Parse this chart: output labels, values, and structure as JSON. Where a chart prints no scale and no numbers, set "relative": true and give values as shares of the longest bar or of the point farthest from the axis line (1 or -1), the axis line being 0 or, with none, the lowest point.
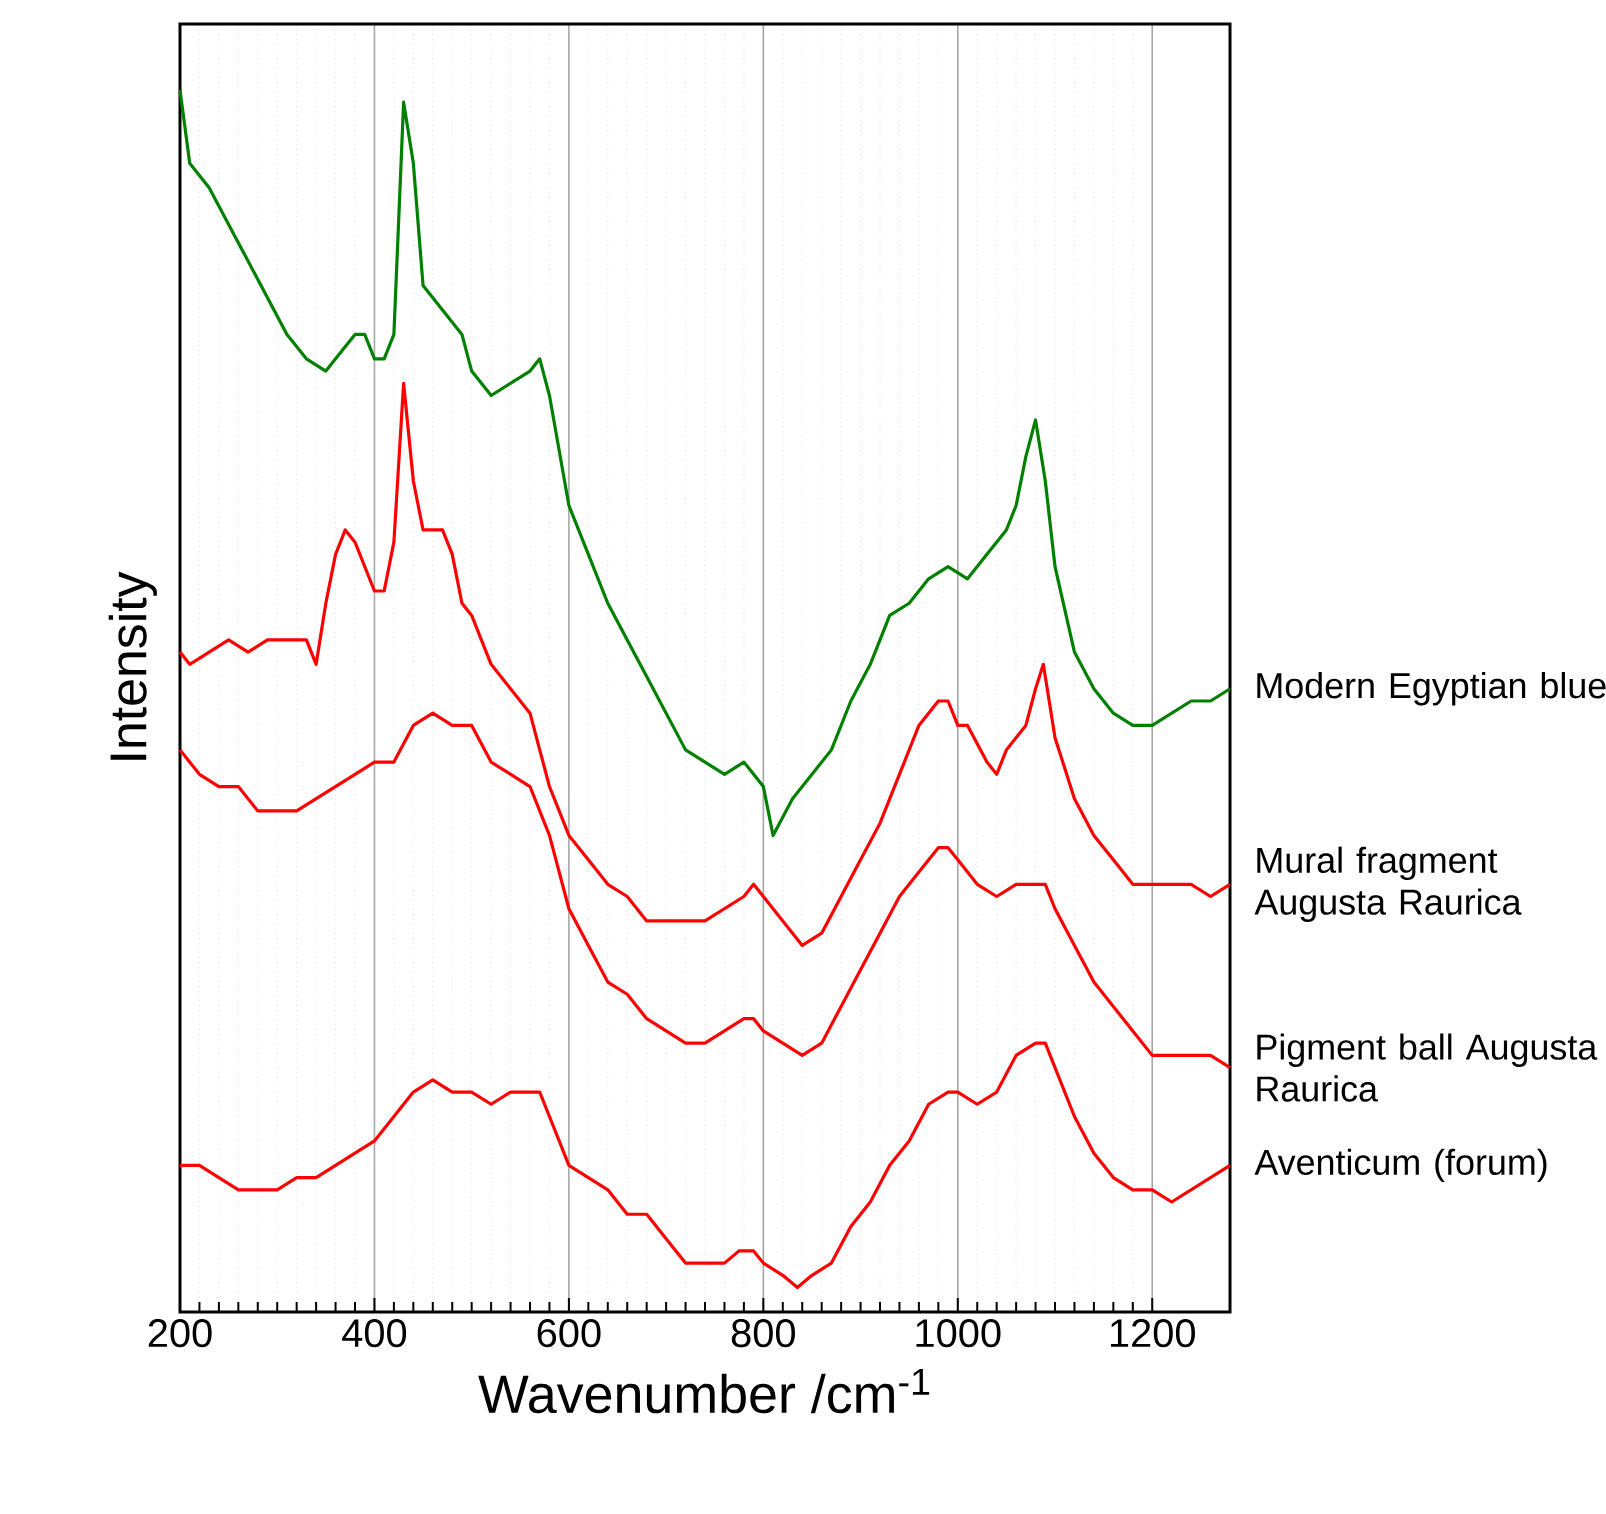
{
  "chart_data": {
    "type": "line",
    "relative": true,
    "xlabel": "Wavenumber /cm$^{-1}$",
    "ylabel": "Intensity",
    "xlim": [
      200,
      1280
    ],
    "xticks": [
      200,
      400,
      600,
      800,
      1000,
      1200
    ],
    "grid": "x",
    "legend": false,
    "marker": "none",
    "line_style": "solid",
    "series": [
      {
        "name": "Modern Egyptian blue",
        "color": "#008000",
        "x": [
          200,
          210,
          230,
          250,
          270,
          290,
          310,
          330,
          350,
          360,
          380,
          390,
          400,
          410,
          420,
          430,
          440,
          450,
          460,
          470,
          490,
          500,
          520,
          540,
          560,
          570,
          580,
          600,
          620,
          640,
          660,
          680,
          700,
          720,
          740,
          760,
          780,
          790,
          800,
          810,
          830,
          850,
          870,
          890,
          910,
          930,
          950,
          970,
          990,
          1010,
          1030,
          1050,
          1060,
          1070,
          1080,
          1090,
          1100,
          1120,
          1140,
          1160,
          1180,
          1200,
          1220,
          1240,
          1260,
          1280
        ],
        "values": [
          1.0,
          0.94,
          0.92,
          0.89,
          0.86,
          0.83,
          0.8,
          0.78,
          0.77,
          0.78,
          0.8,
          0.8,
          0.78,
          0.78,
          0.8,
          0.99,
          0.94,
          0.84,
          0.83,
          0.82,
          0.8,
          0.77,
          0.75,
          0.76,
          0.77,
          0.78,
          0.75,
          0.66,
          0.62,
          0.58,
          0.55,
          0.52,
          0.49,
          0.46,
          0.45,
          0.44,
          0.45,
          0.44,
          0.43,
          0.39,
          0.42,
          0.44,
          0.46,
          0.5,
          0.53,
          0.57,
          0.58,
          0.6,
          0.61,
          0.6,
          0.62,
          0.64,
          0.66,
          0.7,
          0.73,
          0.68,
          0.61,
          0.54,
          0.51,
          0.49,
          0.48,
          0.48,
          0.49,
          0.5,
          0.5,
          0.51
        ]
      },
      {
        "name": "Mural fragment Augusta Raurica",
        "color": "#ff0000",
        "x": [
          200,
          210,
          230,
          250,
          270,
          290,
          310,
          330,
          340,
          350,
          360,
          370,
          380,
          390,
          400,
          410,
          420,
          430,
          440,
          450,
          460,
          470,
          480,
          490,
          500,
          520,
          540,
          560,
          570,
          580,
          600,
          620,
          640,
          660,
          680,
          700,
          720,
          740,
          760,
          780,
          790,
          800,
          820,
          840,
          860,
          880,
          900,
          920,
          940,
          960,
          980,
          990,
          1000,
          1010,
          1030,
          1040,
          1050,
          1070,
          1080,
          1088,
          1100,
          1120,
          1140,
          1160,
          1180,
          1200,
          1220,
          1240,
          1260,
          1280
        ],
        "values": [
          0.54,
          0.53,
          0.54,
          0.55,
          0.54,
          0.55,
          0.55,
          0.55,
          0.53,
          0.58,
          0.62,
          0.64,
          0.63,
          0.61,
          0.59,
          0.59,
          0.63,
          0.76,
          0.68,
          0.64,
          0.64,
          0.64,
          0.62,
          0.58,
          0.57,
          0.53,
          0.51,
          0.49,
          0.46,
          0.43,
          0.39,
          0.37,
          0.35,
          0.34,
          0.32,
          0.32,
          0.32,
          0.32,
          0.33,
          0.34,
          0.35,
          0.34,
          0.32,
          0.3,
          0.31,
          0.34,
          0.37,
          0.4,
          0.44,
          0.48,
          0.5,
          0.5,
          0.48,
          0.48,
          0.45,
          0.44,
          0.46,
          0.48,
          0.51,
          0.53,
          0.47,
          0.42,
          0.39,
          0.37,
          0.35,
          0.35,
          0.35,
          0.35,
          0.34,
          0.35
        ]
      },
      {
        "name": "Pigment ball Augusta Raurica",
        "color": "#ff0000",
        "x": [
          200,
          220,
          240,
          260,
          280,
          300,
          320,
          340,
          360,
          380,
          400,
          410,
          420,
          440,
          460,
          480,
          500,
          520,
          540,
          560,
          580,
          600,
          620,
          640,
          660,
          680,
          700,
          720,
          740,
          760,
          780,
          790,
          800,
          820,
          840,
          860,
          880,
          900,
          920,
          940,
          960,
          980,
          990,
          1000,
          1020,
          1040,
          1060,
          1080,
          1090,
          1100,
          1120,
          1140,
          1160,
          1180,
          1200,
          1220,
          1240,
          1260,
          1280
        ],
        "values": [
          0.46,
          0.44,
          0.43,
          0.43,
          0.41,
          0.41,
          0.41,
          0.42,
          0.43,
          0.44,
          0.45,
          0.45,
          0.45,
          0.48,
          0.49,
          0.48,
          0.48,
          0.45,
          0.44,
          0.43,
          0.39,
          0.33,
          0.3,
          0.27,
          0.26,
          0.24,
          0.23,
          0.22,
          0.22,
          0.23,
          0.24,
          0.24,
          0.23,
          0.22,
          0.21,
          0.22,
          0.25,
          0.28,
          0.31,
          0.34,
          0.36,
          0.38,
          0.38,
          0.37,
          0.35,
          0.34,
          0.35,
          0.35,
          0.35,
          0.33,
          0.3,
          0.27,
          0.25,
          0.23,
          0.21,
          0.21,
          0.21,
          0.21,
          0.2
        ]
      },
      {
        "name": "Aventicum (forum)",
        "color": "#ff0000",
        "x": [
          200,
          220,
          240,
          260,
          280,
          300,
          320,
          340,
          360,
          380,
          400,
          420,
          440,
          460,
          480,
          500,
          520,
          540,
          560,
          570,
          580,
          600,
          620,
          640,
          660,
          680,
          700,
          720,
          740,
          760,
          775,
          790,
          800,
          820,
          835,
          850,
          870,
          890,
          910,
          930,
          950,
          970,
          990,
          1000,
          1020,
          1040,
          1060,
          1080,
          1090,
          1100,
          1120,
          1140,
          1160,
          1180,
          1200,
          1220,
          1240,
          1260,
          1280
        ],
        "values": [
          0.12,
          0.12,
          0.11,
          0.1,
          0.1,
          0.1,
          0.11,
          0.11,
          0.12,
          0.13,
          0.14,
          0.16,
          0.18,
          0.19,
          0.18,
          0.18,
          0.17,
          0.18,
          0.18,
          0.18,
          0.16,
          0.12,
          0.11,
          0.1,
          0.08,
          0.08,
          0.06,
          0.04,
          0.04,
          0.04,
          0.05,
          0.05,
          0.04,
          0.03,
          0.02,
          0.03,
          0.04,
          0.07,
          0.09,
          0.12,
          0.14,
          0.17,
          0.18,
          0.18,
          0.17,
          0.18,
          0.21,
          0.22,
          0.22,
          0.2,
          0.16,
          0.13,
          0.11,
          0.1,
          0.1,
          0.09,
          0.1,
          0.11,
          0.12
        ]
      }
    ]
  }
}
